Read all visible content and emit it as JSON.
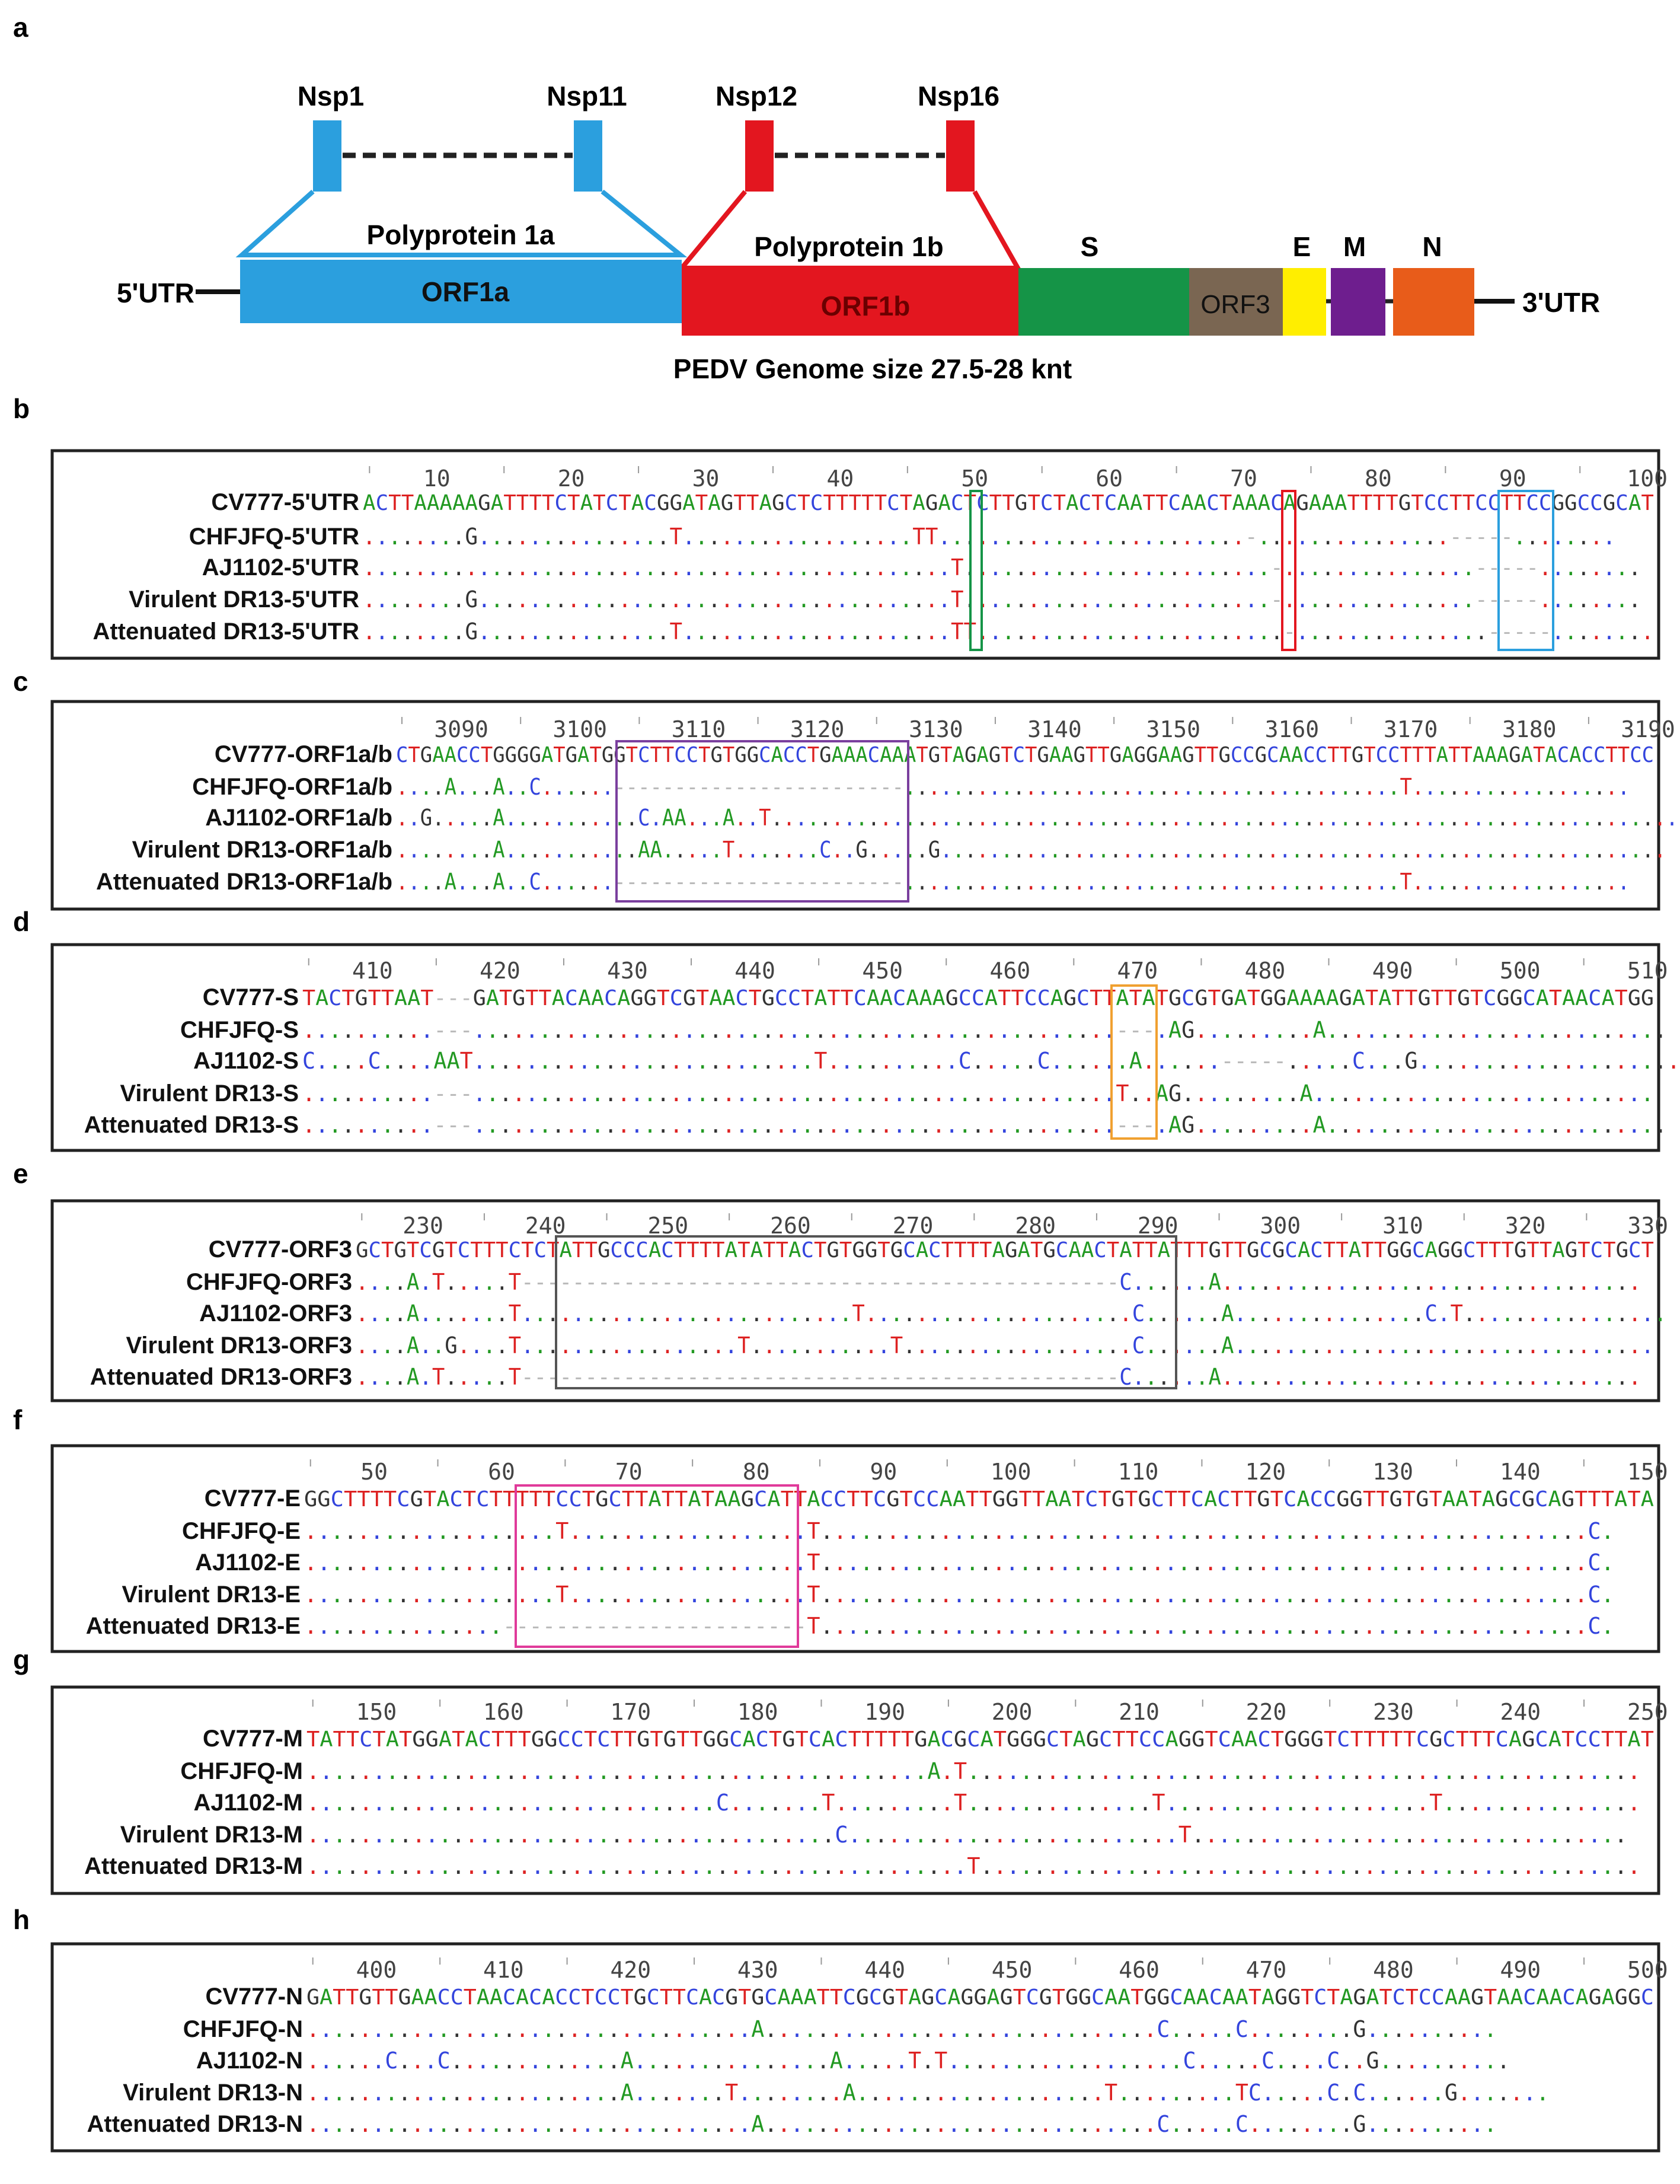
{
  "colors": {
    "A": "#229922",
    "C": "#3344dd",
    "G": "#333333",
    "T": "#dd2222",
    "orf1a": "#2b9fde",
    "orf1b": "#e3161f",
    "s": "#159447",
    "orf3": "#7a6652",
    "e": "#ffee00",
    "m": "#6e1e8e",
    "n": "#e85c1a",
    "frame": "#222222"
  },
  "genome": {
    "panel_letter": "a",
    "nsp_labels": [
      "Nsp1",
      "Nsp11",
      "Nsp12",
      "Nsp16"
    ],
    "polyprotein_1a": "Polyprotein 1a",
    "polyprotein_1b": "Polyprotein 1b",
    "utr5": "5'UTR",
    "utr3": "3'UTR",
    "orf1a": "ORF1a",
    "orf1b": "ORF1b",
    "orf3": "ORF3",
    "s": "S",
    "e": "E",
    "m": "M",
    "n": "N",
    "caption": "PEDV Genome size 27.5-28 knt"
  },
  "panels": [
    {
      "letter": "b",
      "ticks": [
        "10",
        "20",
        "30",
        "40",
        "50",
        "60",
        "70",
        "80",
        "90",
        "100"
      ],
      "rows": [
        {
          "label": "CV777-5'UTR",
          "seq": "ACTTAAAAAGATTTTCTATCTACGGATAGTTAGCTCTTTTTCTAGACTCTTGTCTACTCAATTCAACTAAACAGAAATTTTGTCCTTCCTTCCGGCCGCAT"
        },
        {
          "label": "CHFJFQ-5'UTR",
          "seq": "........G...............T..................TT........................-...............-----........"
        },
        {
          "label": "AJ1102-5'UTR",
          "seq": "..............................................T........................-...............-----........"
        },
        {
          "label": "Virulent DR13-5'UTR",
          "seq": "........G.....................................T........................-...............-----........"
        },
        {
          "label": "Attenuated DR13-5'UTR",
          "seq": "........G...............T.....................TT........................-...............-----........"
        }
      ]
    },
    {
      "letter": "c",
      "ticks": [
        "3090",
        "3100",
        "3110",
        "3120",
        "3130",
        "3140",
        "3150",
        "3160",
        "3170",
        "3180",
        "3190"
      ],
      "rows": [
        {
          "label": "CV777-ORF1a/b",
          "seq": "CTGAACCTGGGGATGATGGTCTTCCTGTGGCACCTGAAACAAATGTAGAGTCTGAAGTTGAGGAAGTTGCCGCAACCTTGTCCTTTATTAAAGATACACCTTCC"
        },
        {
          "label": "CHFJFQ-ORF1a/b",
          "seq": "....A...A..C......------------------------.........................................T.................."
        },
        {
          "label": "AJ1102-ORF1a/b",
          "seq": "..G.....A...........C.AA...A..T..........................................................................."
        },
        {
          "label": "Virulent DR13-ORF1a/b",
          "seq": "........A...........AA.....T.......C..G.....G............................................................"
        },
        {
          "label": "Attenuated DR13-ORF1a/b",
          "seq": "....A...A..C......------------------------.........................................T.................."
        }
      ]
    },
    {
      "letter": "d",
      "ticks": [
        "410",
        "420",
        "430",
        "440",
        "450",
        "460",
        "470",
        "480",
        "490",
        "500",
        "510"
      ],
      "rows": [
        {
          "label": "CV777-S",
          "seq": "TACTGTTAAT---GATGTTACAACAGGTCGTAACTGCCTATTCAACAAAGCCATTCCAGCTTATATGCGTGATGGAAAAGATATTGTTGTCGGCATAACATGG"
        },
        {
          "label": "CHFJFQ-S",
          "seq": "..........---.................................................---.AG.........A.........................."
        },
        {
          "label": "AJ1102-S",
          "seq": "C....C....AAT..........................T..........C.....C......A......-----.....C...G......................"
        },
        {
          "label": "Virulent DR13-S",
          "seq": "..........---.................................................T..AG.........A.........................."
        },
        {
          "label": "Attenuated DR13-S",
          "seq": "..........---.................................................---.AG.........A.........................."
        }
      ]
    },
    {
      "letter": "e",
      "ticks": [
        "230",
        "240",
        "250",
        "260",
        "270",
        "280",
        "290",
        "300",
        "310",
        "320",
        "330"
      ],
      "rows": [
        {
          "label": "CV777-ORF3",
          "seq": "GCTGTCGTCTTTCTCTATTGCCCACTTTTATATTACTGTGGTGCACTTTTAGATGCAACTATTATTTGTTGCGCACTTATTGGCAGGCTTTGTTAGTCTGCT"
        },
        {
          "label": "CHFJFQ-ORF3",
          "seq": "....A.T.....T-----------------------------------------------C......A................................."
        },
        {
          "label": "AJ1102-ORF3",
          "seq": "....A.......T..........................T.....................C......A...............C.T................"
        },
        {
          "label": "Virulent DR13-ORF3",
          "seq": "....A..G....T.................T...........T..................C......A................................."
        },
        {
          "label": "Attenuated DR13-ORF3",
          "seq": "....A.T.....T-----------------------------------------------C......A................................."
        }
      ]
    },
    {
      "letter": "f",
      "ticks": [
        "50",
        "60",
        "70",
        "80",
        "90",
        "100",
        "110",
        "120",
        "130",
        "140",
        "150"
      ],
      "rows": [
        {
          "label": "CV777-E",
          "seq": "GGCTTTTCGTACTCTTTTTCCTGCTTATTATAAGCATTACCTTCGTCCAATTGGTTAATCTGTGCTTCACTTGTCACCGGTTGTGTAATAGCGCAGTTTATA"
        },
        {
          "label": "CHFJFQ-E",
          "seq": "...................T..................T..........................................................C."
        },
        {
          "label": "AJ1102-E",
          "seq": "......................................T..........................................................C."
        },
        {
          "label": "Virulent DR13-E",
          "seq": "...................T..................T..........................................................C."
        },
        {
          "label": "Attenuated DR13-E",
          "seq": "...............-----------------------T..........................................................C."
        }
      ]
    },
    {
      "letter": "g",
      "ticks": [
        "150",
        "160",
        "170",
        "180",
        "190",
        "200",
        "210",
        "220",
        "230",
        "240",
        "250"
      ],
      "rows": [
        {
          "label": "CV777-M",
          "seq": "TATTCTATGGATACTTTGGCCTCTTGTGTTGGCACTGTCACTTTTTGACGCATGGGCTAGCTTCCAGGTCAACTGGGTCTTTTTCGCTTTCAGCATCCTTAT"
        },
        {
          "label": "CHFJFQ-M",
          "seq": "...............................................A.T..................................................."
        },
        {
          "label": "AJ1102-M",
          "seq": "...............................C.......T.........T..............T....................T..............."
        },
        {
          "label": "Virulent DR13-M",
          "seq": "........................................C.........................T................................."
        },
        {
          "label": "Attenuated DR13-M",
          "seq": "..................................................T.................................................."
        }
      ]
    },
    {
      "letter": "h",
      "ticks": [
        "400",
        "410",
        "420",
        "430",
        "440",
        "450",
        "460",
        "470",
        "480",
        "490",
        "500"
      ],
      "rows": [
        {
          "label": "CV777-N",
          "seq": "GATTGTTGAACCTAACACACCTCCTGCTTCACGTGCAAATTCGCGTAGCAGGAGTCGTGGCAATGGCAACAATAGGTCTAGATCTCCAAGTAACAACAGAGGC"
        },
        {
          "label": "CHFJFQ-N",
          "seq": "..................................A..............................C.....C........G.........."
        },
        {
          "label": "AJ1102-N",
          "seq": "......C...C.............A...............A.....T.T..................C.....C....C..G.........."
        },
        {
          "label": "Virulent DR13-N",
          "seq": "........................A.......T........A...................T.........TC.....C.C......G......."
        },
        {
          "label": "Attenuated DR13-N",
          "seq": "..................................A..............................C.....C........G.........."
        }
      ]
    }
  ]
}
